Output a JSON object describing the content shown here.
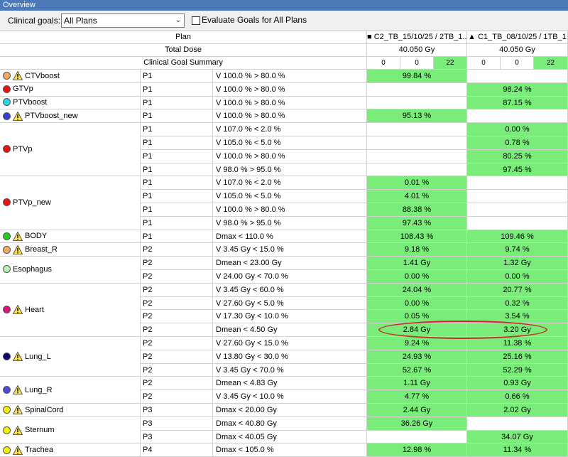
{
  "window": {
    "title": "Overview"
  },
  "toolbar": {
    "label": "Clinical goals:",
    "select_value": "All Plans",
    "checkbox_label": "Evaluate Goals for All Plans"
  },
  "header": {
    "plan_label": "Plan",
    "total_dose_label": "Total Dose",
    "summary_label": "Clinical Goal Summary",
    "plan1": {
      "name": "■ C2_TB_15/10/25 / 2TB_1...",
      "dose": "40.050 Gy",
      "counts": [
        "0",
        "0",
        "22"
      ]
    },
    "plan2": {
      "name": "▲ C1_TB_08/10/25 / 1TB_1",
      "dose": "40.050 Gy",
      "counts": [
        "0",
        "0",
        "22"
      ]
    }
  },
  "colors": {
    "pass": "#79ec79",
    "title_bar": "#4d7ab6",
    "highlight_ellipse": "#cc2a2a"
  },
  "rois": [
    {
      "name": "CTVboost",
      "color": "#f4a860",
      "warn": true,
      "rows": [
        {
          "priority": "P1",
          "goal": "V 100.0 % > 80.0 %",
          "v1": "99.84 %",
          "p1": true,
          "v2": "",
          "p2": false
        }
      ]
    },
    {
      "name": "GTVp",
      "color": "#ee1111",
      "warn": false,
      "rows": [
        {
          "priority": "P1",
          "goal": "V 100.0 % > 80.0 %",
          "v1": "",
          "p1": false,
          "v2": "98.24 %",
          "p2": true
        }
      ]
    },
    {
      "name": "PTVboost",
      "color": "#22d8e8",
      "warn": false,
      "rows": [
        {
          "priority": "P1",
          "goal": "V 100.0 % > 80.0 %",
          "v1": "",
          "p1": false,
          "v2": "87.15 %",
          "p2": true
        }
      ]
    },
    {
      "name": "PTVboost_new",
      "color": "#3b3bd6",
      "warn": true,
      "rows": [
        {
          "priority": "P1",
          "goal": "V 100.0 % > 80.0 %",
          "v1": "95.13 %",
          "p1": true,
          "v2": "",
          "p2": false
        }
      ]
    },
    {
      "name": "PTVp",
      "color": "#ee1111",
      "warn": false,
      "rows": [
        {
          "priority": "P1",
          "goal": "V 107.0 % < 2.0 %",
          "v1": "",
          "p1": false,
          "v2": "0.00 %",
          "p2": true
        },
        {
          "priority": "P1",
          "goal": "V 105.0 % < 5.0 %",
          "v1": "",
          "p1": false,
          "v2": "0.78 %",
          "p2": true
        },
        {
          "priority": "P1",
          "goal": "V 100.0 % > 80.0 %",
          "v1": "",
          "p1": false,
          "v2": "80.25 %",
          "p2": true
        },
        {
          "priority": "P1",
          "goal": "V 98.0 % > 95.0 %",
          "v1": "",
          "p1": false,
          "v2": "97.45 %",
          "p2": true
        }
      ]
    },
    {
      "name": "PTVp_new",
      "color": "#ee1111",
      "warn": false,
      "rows": [
        {
          "priority": "P1",
          "goal": "V 107.0 % < 2.0 %",
          "v1": "0.01 %",
          "p1": true,
          "v2": "",
          "p2": false
        },
        {
          "priority": "P1",
          "goal": "V 105.0 % < 5.0 %",
          "v1": "4.01 %",
          "p1": true,
          "v2": "",
          "p2": false
        },
        {
          "priority": "P1",
          "goal": "V 100.0 % > 80.0 %",
          "v1": "88.38 %",
          "p1": true,
          "v2": "",
          "p2": false
        },
        {
          "priority": "P1",
          "goal": "V 98.0 % > 95.0 %",
          "v1": "97.43 %",
          "p1": true,
          "v2": "",
          "p2": false
        }
      ]
    },
    {
      "name": "BODY",
      "color": "#22cc22",
      "warn": true,
      "rows": [
        {
          "priority": "P1",
          "goal": "Dmax < 110.0 %",
          "v1": "108.43 %",
          "p1": true,
          "v2": "109.46 %",
          "p2": true
        }
      ]
    },
    {
      "name": "Breast_R",
      "color": "#f4a860",
      "warn": true,
      "rows": [
        {
          "priority": "P2",
          "goal": "V 3.45 Gy < 15.0 %",
          "v1": "9.18 %",
          "p1": true,
          "v2": "9.74 %",
          "p2": true
        }
      ]
    },
    {
      "name": "Esophagus",
      "color": "#b6f2b6",
      "warn": false,
      "rows": [
        {
          "priority": "P2",
          "goal": "Dmean < 23.00 Gy",
          "v1": "1.41 Gy",
          "p1": true,
          "v2": "1.32 Gy",
          "p2": true
        },
        {
          "priority": "P2",
          "goal": "V 24.00 Gy < 70.0 %",
          "v1": "0.00 %",
          "p1": true,
          "v2": "0.00 %",
          "p2": true
        }
      ]
    },
    {
      "name": "Heart",
      "color": "#e0117c",
      "warn": true,
      "rows": [
        {
          "priority": "P2",
          "goal": "V 3.45 Gy < 60.0 %",
          "v1": "24.04 %",
          "p1": true,
          "v2": "20.77 %",
          "p2": true
        },
        {
          "priority": "P2",
          "goal": "V 27.60 Gy < 5.0 %",
          "v1": "0.00 %",
          "p1": true,
          "v2": "0.32 %",
          "p2": true
        },
        {
          "priority": "P2",
          "goal": "V 17.30 Gy < 10.0 %",
          "v1": "0.05 %",
          "p1": true,
          "v2": "3.54 %",
          "p2": true
        },
        {
          "priority": "P2",
          "goal": "Dmean < 4.50 Gy",
          "v1": "2.84 Gy",
          "p1": true,
          "v2": "3.20 Gy",
          "p2": true
        }
      ]
    },
    {
      "name": "Lung_L",
      "color": "#0a0a6e",
      "warn": true,
      "rows": [
        {
          "priority": "P2",
          "goal": "V 27.60 Gy < 15.0 %",
          "v1": "9.24 %",
          "p1": true,
          "v2": "11.38 %",
          "p2": true
        },
        {
          "priority": "P2",
          "goal": "V 13.80 Gy < 30.0 %",
          "v1": "24.93 %",
          "p1": true,
          "v2": "25.16 %",
          "p2": true
        },
        {
          "priority": "P2",
          "goal": "V 3.45 Gy < 70.0 %",
          "v1": "52.67 %",
          "p1": true,
          "v2": "52.29 %",
          "p2": true
        }
      ]
    },
    {
      "name": "Lung_R",
      "color": "#4a4ae0",
      "warn": true,
      "rows": [
        {
          "priority": "P2",
          "goal": "Dmean < 4.83 Gy",
          "v1": "1.11 Gy",
          "p1": true,
          "v2": "0.93 Gy",
          "p2": true
        },
        {
          "priority": "P2",
          "goal": "V 3.45 Gy < 10.0 %",
          "v1": "4.77 %",
          "p1": true,
          "v2": "0.66 %",
          "p2": true
        }
      ]
    },
    {
      "name": "SpinalCord",
      "color": "#f2f200",
      "warn": true,
      "rows": [
        {
          "priority": "P3",
          "goal": "Dmax < 20.00 Gy",
          "v1": "2.44 Gy",
          "p1": true,
          "v2": "2.02 Gy",
          "p2": true
        }
      ]
    },
    {
      "name": "Sternum",
      "color": "#f2f200",
      "warn": true,
      "rows": [
        {
          "priority": "P3",
          "goal": "Dmax < 40.80 Gy",
          "v1": "36.26 Gy",
          "p1": true,
          "v2": "",
          "p2": false
        },
        {
          "priority": "P3",
          "goal": "Dmax < 40.05 Gy",
          "v1": "",
          "p1": false,
          "v2": "34.07 Gy",
          "p2": true
        }
      ]
    },
    {
      "name": "Trachea",
      "color": "#f2f200",
      "warn": true,
      "rows": [
        {
          "priority": "P4",
          "goal": "Dmax < 105.0 %",
          "v1": "12.98 %",
          "p1": true,
          "v2": "11.34 %",
          "p2": true
        }
      ]
    }
  ]
}
